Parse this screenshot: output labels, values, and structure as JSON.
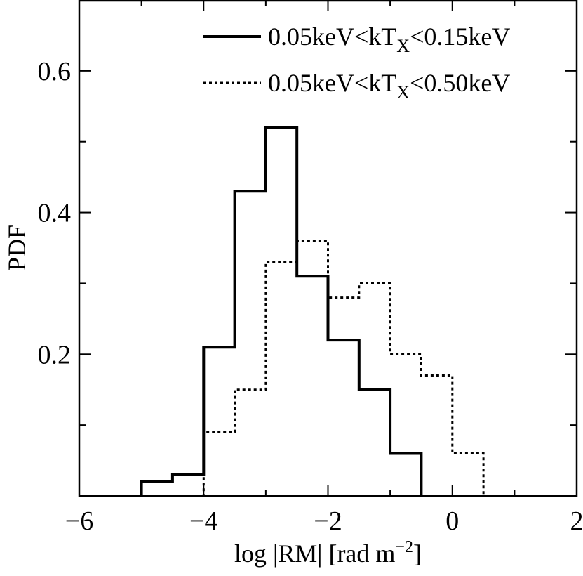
{
  "chart_data": {
    "type": "line",
    "step": true,
    "xlabel": "log |RM| [rad m",
    "xlabel_sup": "−2",
    "xlabel_end": "]",
    "ylabel": "PDF",
    "xlim": [
      -6,
      2
    ],
    "ylim": [
      0,
      0.7
    ],
    "x_ticks": [
      {
        "value": -6,
        "label": "−6"
      },
      {
        "value": -4,
        "label": "−4"
      },
      {
        "value": -2,
        "label": "−2"
      },
      {
        "value": 0,
        "label": "0"
      },
      {
        "value": 2,
        "label": "2"
      }
    ],
    "y_ticks": [
      {
        "value": 0.2,
        "label": "0.2"
      },
      {
        "value": 0.4,
        "label": "0.4"
      },
      {
        "value": 0.6,
        "label": "0.6"
      }
    ],
    "legend_position": "top-right",
    "bin_edges": [
      -6,
      -5.5,
      -5,
      -4.5,
      -4,
      -3.5,
      -3,
      -2.5,
      -2,
      -1.5,
      -1,
      -0.5,
      0,
      0.5,
      1
    ],
    "series": [
      {
        "legend_prefix": "0.05keV<kT",
        "legend_sub": "X",
        "legend_suffix": "<0.15keV",
        "style": "solid",
        "values": [
          0,
          0,
          0.02,
          0.03,
          0.21,
          0.43,
          0.52,
          0.31,
          0.22,
          0.15,
          0.06,
          0,
          0,
          0
        ]
      },
      {
        "legend_prefix": "0.05keV<kT",
        "legend_sub": "X",
        "legend_suffix": "<0.50keV",
        "style": "dotted",
        "values": [
          0,
          0,
          0,
          0,
          0.09,
          0.15,
          0.33,
          0.36,
          0.28,
          0.3,
          0.2,
          0.17,
          0.06,
          0
        ]
      }
    ]
  }
}
